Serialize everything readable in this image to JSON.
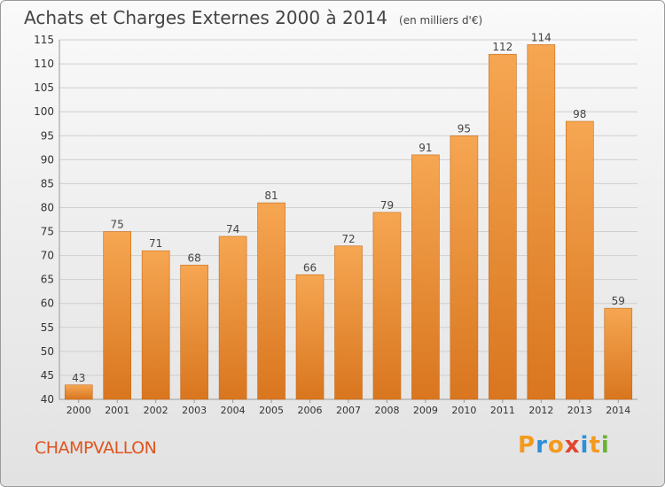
{
  "title": "Achats et Charges Externes 2000 à 2014",
  "unit": "(en milliers d'€)",
  "place": "CHAMPVALLON",
  "brand": {
    "text": "Proxiti",
    "letter_colors": [
      "#f39a1e",
      "#2f8fd8",
      "#f39a1e",
      "#e2442f",
      "#2f8fd8",
      "#f39a1e",
      "#6ab232"
    ]
  },
  "colors": {
    "bar_top": "#f6a652",
    "bar_bottom": "#d9761f",
    "bar_edge": "#c66a17",
    "grid": "#cfcfcf",
    "axis_text": "#333333"
  },
  "chart_data": {
    "type": "bar",
    "categories": [
      "2000",
      "2001",
      "2002",
      "2003",
      "2004",
      "2005",
      "2006",
      "2007",
      "2008",
      "2009",
      "2010",
      "2011",
      "2012",
      "2013",
      "2014"
    ],
    "values": [
      43,
      75,
      71,
      68,
      74,
      81,
      66,
      72,
      79,
      91,
      95,
      112,
      114,
      98,
      59
    ],
    "ylim": [
      40,
      115
    ],
    "yticks": [
      40,
      45,
      50,
      55,
      60,
      65,
      70,
      75,
      80,
      85,
      90,
      95,
      100,
      105,
      110,
      115
    ],
    "grid": true,
    "xlabel": "",
    "ylabel": ""
  }
}
